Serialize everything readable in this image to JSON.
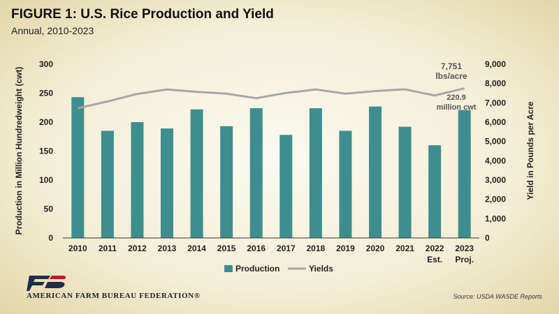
{
  "title": "FIGURE 1: U.S. Rice Production and Yield",
  "subtitle": "Annual, 2010-2023",
  "organization": "AMERICAN FARM BUREAU FEDERATION®",
  "source": "Source: USDA WASDE Reports",
  "colors": {
    "production": "#3e8e8f",
    "yields": "#a6a6a6"
  },
  "chart_data": {
    "type": "bar",
    "categories": [
      "2010",
      "2011",
      "2012",
      "2013",
      "2014",
      "2015",
      "2016",
      "2017",
      "2018",
      "2019",
      "2020",
      "2021",
      "2022",
      "2023"
    ],
    "category_sublabels": [
      "",
      "",
      "",
      "",
      "",
      "",
      "",
      "",
      "",
      "",
      "",
      "",
      "Est.",
      "Proj."
    ],
    "series": [
      {
        "name": "Production",
        "type": "bar",
        "axis": "left",
        "values": [
          243,
          185,
          200,
          189,
          222,
          193,
          224,
          178,
          224,
          185,
          227,
          192,
          160,
          220.9
        ]
      },
      {
        "name": "Yields",
        "type": "line",
        "axis": "right",
        "values": [
          6720,
          7070,
          7460,
          7690,
          7570,
          7470,
          7240,
          7510,
          7690,
          7470,
          7610,
          7700,
          7380,
          7751
        ]
      }
    ],
    "ylabel": "Production in Million Hundredweight (cwt)",
    "y2label": "Yield in Pounds per Acre",
    "ylim": [
      0,
      300
    ],
    "y2lim": [
      0,
      9000
    ],
    "yticks": [
      "0",
      "50",
      "100",
      "150",
      "200",
      "250",
      "300"
    ],
    "y2ticks": [
      "0",
      "1,000",
      "2,000",
      "3,000",
      "4,000",
      "5,000",
      "6,000",
      "7,000",
      "8,000",
      "9,000"
    ],
    "annotations": {
      "yield_value": "7,751",
      "yield_unit": "lbs/acre",
      "production_value": "220.9",
      "production_unit": "million cwt"
    },
    "legend": [
      "Production",
      "Yields"
    ],
    "legend_position": "bottom",
    "grid": false
  }
}
